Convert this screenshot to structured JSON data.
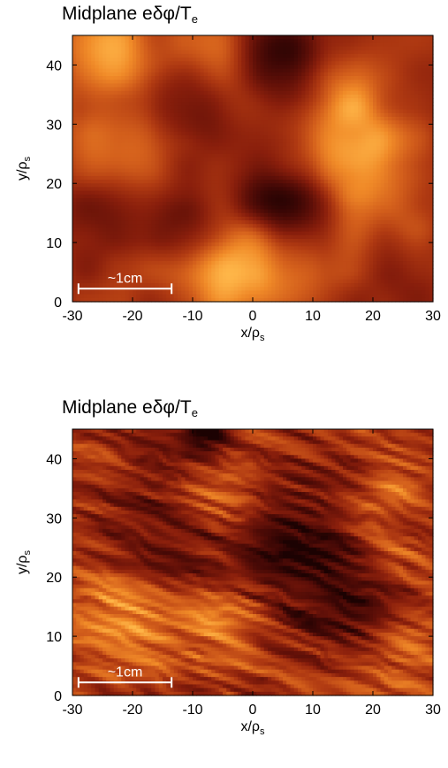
{
  "chart_data": [
    {
      "type": "heatmap",
      "title": "Midplane eδφ/T",
      "title_subscript": "e",
      "xlabel": "x/ρ",
      "xlabel_subscript": "s",
      "ylabel": "y/ρ",
      "ylabel_subscript": "s",
      "xlim": [
        -30,
        30
      ],
      "ylim": [
        0,
        45
      ],
      "xticks": [
        "-30",
        "-20",
        "-10",
        "0",
        "10",
        "20",
        "30"
      ],
      "yticks": [
        "0",
        "10",
        "20",
        "30",
        "40"
      ],
      "scale_bar": {
        "label": "~1cm",
        "x_start": -29,
        "x_end": -13.5,
        "y": 2.2
      },
      "texture": "smooth",
      "colors": [
        "#1c0202",
        "#3d0705",
        "#611008",
        "#8a1f0c",
        "#b03a12",
        "#d4601c",
        "#f08a28",
        "#ffb84a"
      ],
      "features": [
        {
          "x": -24,
          "y": 43,
          "v": 0.75,
          "r": 6
        },
        {
          "x": -6,
          "y": 39,
          "v": 0.55,
          "r": 6
        },
        {
          "x": 5,
          "y": 41,
          "v": -0.9,
          "r": 5
        },
        {
          "x": 16,
          "y": 35,
          "v": 0.45,
          "r": 5
        },
        {
          "x": -22,
          "y": 26,
          "v": 0.5,
          "r": 6
        },
        {
          "x": -10,
          "y": 34,
          "v": -0.7,
          "r": 5
        },
        {
          "x": 17,
          "y": 24,
          "v": 0.9,
          "r": 6
        },
        {
          "x": 5,
          "y": 17,
          "v": -0.85,
          "r": 5
        },
        {
          "x": -11,
          "y": 12,
          "v": -0.55,
          "r": 4
        },
        {
          "x": -3,
          "y": 5,
          "v": 0.75,
          "r": 7
        },
        {
          "x": 8,
          "y": 4,
          "v": 0.35,
          "r": 6
        },
        {
          "x": 25,
          "y": 14,
          "v": 0.3,
          "r": 5
        },
        {
          "x": -26,
          "y": 15,
          "v": -0.3,
          "r": 5
        },
        {
          "x": 25,
          "y": 44,
          "v": 0.1,
          "r": 5
        },
        {
          "x": 26,
          "y": 5,
          "v": -0.2,
          "r": 5
        }
      ]
    },
    {
      "type": "heatmap",
      "title": "Midplane eδφ/T",
      "title_subscript": "e",
      "xlabel": "x/ρ",
      "xlabel_subscript": "s",
      "ylabel": "y/ρ",
      "ylabel_subscript": "s",
      "xlim": [
        -30,
        30
      ],
      "ylim": [
        0,
        45
      ],
      "xticks": [
        "-30",
        "-20",
        "-10",
        "0",
        "10",
        "20",
        "30"
      ],
      "yticks": [
        "0",
        "10",
        "20",
        "30",
        "40"
      ],
      "scale_bar": {
        "label": "~1cm",
        "x_start": -29,
        "x_end": -13.5,
        "y": 2.2
      },
      "texture": "striated",
      "colors": [
        "#1c0202",
        "#3d0705",
        "#611008",
        "#8a1f0c",
        "#b03a12",
        "#d4601c",
        "#f08a28",
        "#ffb84a"
      ],
      "features": [
        {
          "x": -8,
          "y": 44.5,
          "v": -1.0,
          "r": 3
        },
        {
          "x": -5,
          "y": 34,
          "v": 0.65,
          "r": 6
        },
        {
          "x": 22,
          "y": 34,
          "v": 0.35,
          "r": 4
        },
        {
          "x": -15,
          "y": 26,
          "v": -0.6,
          "r": 7
        },
        {
          "x": 10,
          "y": 21,
          "v": -0.7,
          "r": 8
        },
        {
          "x": -22,
          "y": 14,
          "v": 0.75,
          "r": 6
        },
        {
          "x": -5,
          "y": 11,
          "v": 0.6,
          "r": 6
        },
        {
          "x": 22,
          "y": 25,
          "v": 0.4,
          "r": 5
        },
        {
          "x": 20,
          "y": 15,
          "v": -0.4,
          "r": 5
        },
        {
          "x": 25,
          "y": 8,
          "v": 0.35,
          "r": 5
        },
        {
          "x": -27,
          "y": 35,
          "v": 0.1,
          "r": 5
        },
        {
          "x": 2,
          "y": 28,
          "v": -0.45,
          "r": 6
        }
      ]
    }
  ]
}
